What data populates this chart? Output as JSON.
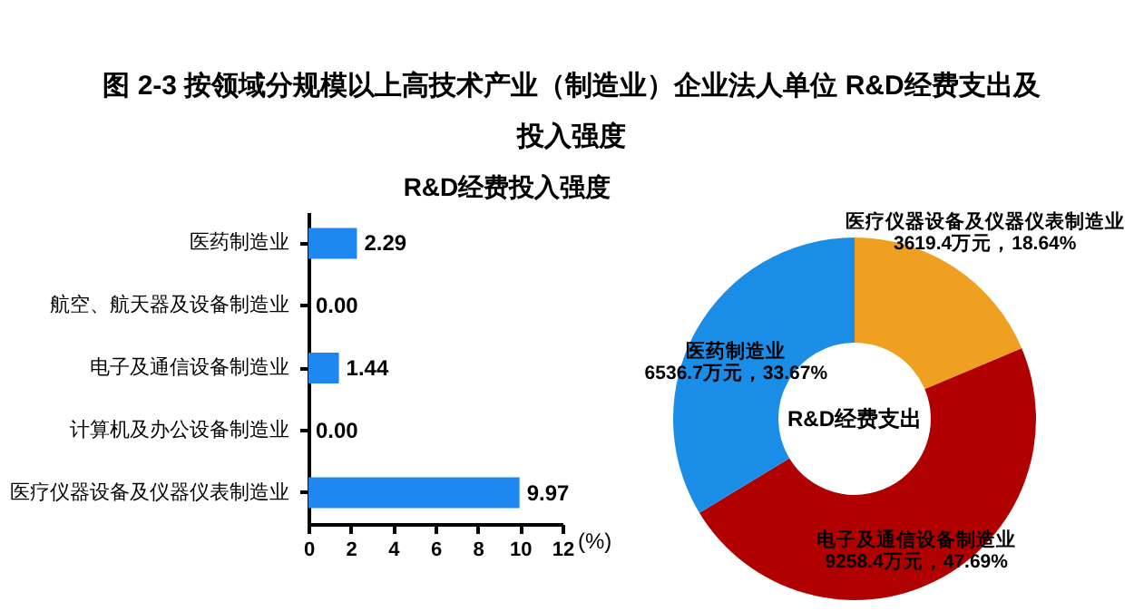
{
  "chart_data": [
    {
      "type": "bar",
      "orientation": "horizontal",
      "title": "图 2-3 按领域分规模以上高技术产业（制造业）企业法人单位 R&D经费支出及投入强度",
      "subtitle": "R&D经费投入强度",
      "xlabel": "(%)",
      "categories": [
        "医药制造业",
        "航空、航天器及设备制造业",
        "电子及通信设备制造业",
        "计算机及办公设备制造业",
        "医疗仪器设备及仪器仪表制造业"
      ],
      "values": [
        2.29,
        0.0,
        1.44,
        0.0,
        9.97
      ],
      "color": "#1e88f0",
      "xlim": [
        0,
        12
      ],
      "xticks": [
        0,
        2,
        4,
        6,
        8,
        10,
        12
      ],
      "data_labels": true,
      "value_labels": [
        "2.29",
        "0.00",
        "1.44",
        "0.00",
        "9.97"
      ]
    },
    {
      "type": "donut",
      "title": "R&D经费支出",
      "categories": [
        "医疗仪器设备及仪器仪表制造业",
        "电子及通信设备制造业",
        "医药制造业"
      ],
      "values": [
        3619.4,
        9258.4,
        6536.7
      ],
      "colors": [
        "#f0a020",
        "#b00000",
        "#1a8ee6"
      ],
      "value_labels": [
        "3619.4万元，18.64%",
        "9258.4万元，47.69%",
        "6536.7万元，33.67%"
      ]
    }
  ]
}
